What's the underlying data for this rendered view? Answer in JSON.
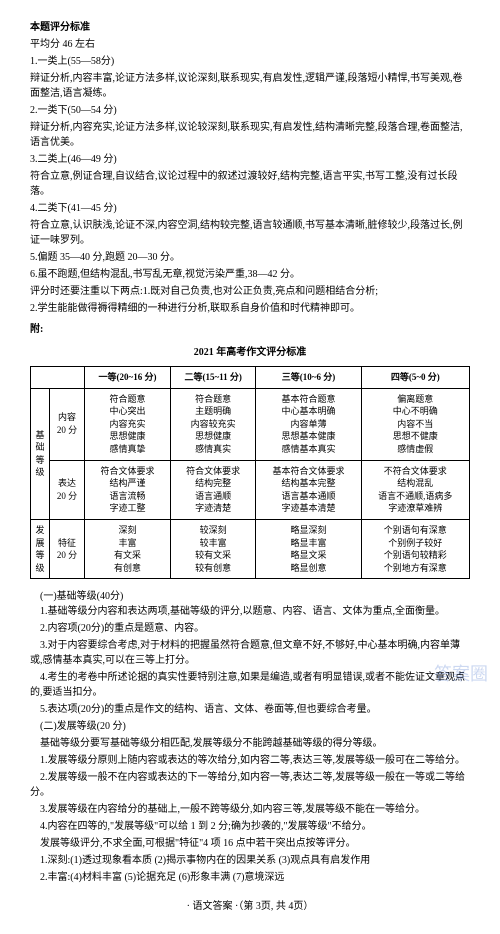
{
  "header": {
    "title": "本题评分标准",
    "avg": "平均分 46 左右"
  },
  "criteria": [
    "1.一类上(55—58分)",
    "辩证分析,内容丰富,论证方法多样,议论深刻,联系现实,有启发性,逻辑严谨,段落短小精悍,书写美观,卷面整洁,语言凝练。",
    "2.一类下(50—54 分)",
    "辩证分析,内容充实,论证方法多样,议论较深刻,联系现实,有启发性,结构清晰完整,段落合理,卷面整洁,语言优美。",
    "3.二类上(46—49 分)",
    "符合立意,例证合理,自议结合,议论过程中的叙述过渡较好,结构完整,语言平实,书写工整,没有过长段落。",
    "4.二类下(41—45 分)",
    "符合立意,认识肤浅,论证不深,内容空洞,结构较完整,语言较通顺,书写基本清晰,脏修较少,段落过长,例证一味罗列。",
    "5.偏题 35—40 分,跑题 20—30 分。",
    "6.虽不跑题,但结构混乱,书写乱无章,视觉污染严重,38—42 分。",
    "评分时还要注重以下两点:1.既对自己负责,也对公正负责,亮点和问题相结合分析;",
    "2.学生能能做得褥得精细的一种进行分析,联取系自身价值和时代精神即可。"
  ],
  "attachLabel": "附:",
  "tableCaption": "2021 年高考作文评分标准",
  "table": {
    "headers": [
      "",
      "",
      "一等(20~16 分)",
      "二等(15~11 分)",
      "三等(10~6 分)",
      "四等(5~0 分)"
    ],
    "groups": [
      {
        "groupLabel": "基础等级",
        "rows": [
          {
            "rowLabel": "内容\n20 分",
            "cells": [
              "符合题意\n中心突出\n内容充实\n思想健康\n感情真挚",
              "符合题意\n主题明确\n内容较充实\n思想健康\n感情真实",
              "基本符合题意\n中心基本明确\n内容单薄\n思想基本健康\n感情基本真实",
              "偏离题意\n中心不明确\n内容不当\n思想不健康\n感情虚假"
            ]
          },
          {
            "rowLabel": "表达\n20 分",
            "cells": [
              "符合文体要求\n结构严谨\n语言流畅\n字迹工整",
              "符合文体要求\n结构完整\n语言通顺\n字迹清楚",
              "基本符合文体要求\n结构基本完整\n语言基本通顺\n字迹基本清楚",
              "不符合文体要求\n结构混乱\n语言不通顺,语病多\n字迹潦草难辨"
            ]
          }
        ]
      },
      {
        "groupLabel": "发展等级",
        "rows": [
          {
            "rowLabel": "特征\n20 分",
            "cells": [
              "深刻\n丰富\n有文采\n有创意",
              "较深刻\n较丰富\n较有文采\n较有创意",
              "略显深刻\n略显丰富\n略显文采\n略显创意",
              "个别语句有深意\n个别例子较好\n个别语句较精彩\n个别地方有深意"
            ]
          }
        ]
      }
    ]
  },
  "notes": {
    "sec1title": "(一)基础等级(40分)",
    "sec1body": [
      "1.基础等级分内容和表达两项,基础等级的评分,以题意、内容、语言、文体为重点,全面衡量。",
      "2.内容项(20分)的重点是题意、内容。",
      "3.对于内容要综合考虑,对于材料的把握虽然符合题意,但文章不好,不够好,中心基本明确,内容单薄或,感情基本真实,可以在三等上打分。",
      "4.考生的考卷中所述论据的真实性要特别注意,如果是编造,或者有明显错误,或者不能佐证文章观点的,要适当扣分。",
      "5.表达项(20分)的重点是作文的结构、语言、文体、卷面等,但也要综合考量。",
      "(二)发展等级(20 分)"
    ],
    "sec2body": [
      "基础等级分要写基础等级分相匹配,发展等级分不能跨越基础等级的得分等级。",
      "1.发展等级分原则上随内容或表达的等次给分,如内容二等,表达三等,发展等级一般可在二等给分。",
      "2.发展等级一般不在内容或表达的下一等给分,如内容一等,表达二等,发展等级一般在一等或二等给分。",
      "3.发展等级在内容给分的基础上,一般不跨等级分,如内容三等,发展等级不能在一等给分。",
      "4.内容在四等的,\"发展等级\"可以给 1 到 2 分;确为抄袭的,\"发展等级\"不给分。",
      "发展等级评分,不求全面,可根据\"特征\"4 项 16 点中若干突出点按等评分。",
      "1.深刻:(1)透过现象看本质 (2)揭示事物内在的因果关系 (3)观点具有启发作用",
      "2.丰富:(4)材料丰富 (5)论据充足 (6)形象丰满 (7)意境深远"
    ]
  },
  "footer": "· 语文答案 ·（第 3页, 共 4页）",
  "watermark": "答案圈"
}
